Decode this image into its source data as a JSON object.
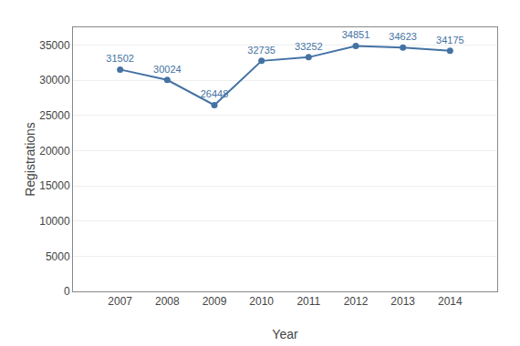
{
  "chart_data": {
    "type": "line",
    "x": [
      2007,
      2008,
      2009,
      2010,
      2011,
      2012,
      2013,
      2014
    ],
    "values": [
      31502,
      30024,
      26448,
      32735,
      33252,
      34851,
      34623,
      34175
    ],
    "color": "#4472a4",
    "marker": "circle",
    "data_labels": true,
    "xlabel": "Year",
    "ylabel": "Registrations",
    "xlim": [
      2006,
      2015
    ],
    "xticks": [
      2007,
      2008,
      2009,
      2010,
      2011,
      2012,
      2013,
      2014
    ],
    "ylim": [
      0,
      37500
    ],
    "yticks": [
      0,
      5000,
      10000,
      15000,
      20000,
      25000,
      30000,
      35000
    ],
    "grid": true
  }
}
